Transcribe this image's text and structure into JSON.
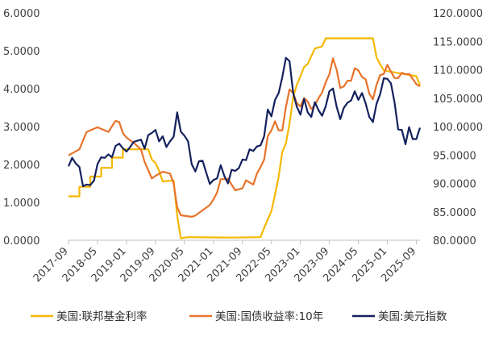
{
  "chart_data": {
    "type": "line",
    "title": "",
    "xlabel": "",
    "ylabel": "",
    "y_left": {
      "ylim": [
        0,
        6
      ],
      "ticks": [
        "0.0000",
        "1.0000",
        "2.0000",
        "3.0000",
        "4.0000",
        "5.0000",
        "6.0000"
      ]
    },
    "y_right": {
      "ylim": [
        80,
        120
      ],
      "ticks": [
        "80.0000",
        "85.0000",
        "90.0000",
        "95.0000",
        "100.0000",
        "105.0000",
        "110.0000",
        "115.0000",
        "120.0000"
      ]
    },
    "x_ticks": [
      "2017-09",
      "2018-05",
      "2019-01",
      "2019-09",
      "2020-05",
      "2021-01",
      "2021-09",
      "2022-05",
      "2023-01",
      "2023-09",
      "2024-05",
      "2025-01",
      "2025-09"
    ],
    "x_range": [
      "2017-09",
      "2025-10"
    ],
    "grid": false,
    "legend_position": "bottom",
    "series": [
      {
        "name": "美国:联邦基金利率",
        "color": "#F5B800",
        "axis": "left",
        "points": [
          [
            "2017-09",
            1.16
          ],
          [
            "2017-12",
            1.16
          ],
          [
            "2017-12",
            1.41
          ],
          [
            "2018-03",
            1.41
          ],
          [
            "2018-03",
            1.68
          ],
          [
            "2018-06",
            1.68
          ],
          [
            "2018-06",
            1.91
          ],
          [
            "2018-09",
            1.91
          ],
          [
            "2018-09",
            2.18
          ],
          [
            "2018-12",
            2.18
          ],
          [
            "2018-12",
            2.4
          ],
          [
            "2019-07",
            2.4
          ],
          [
            "2019-08",
            2.13
          ],
          [
            "2019-09",
            2.04
          ],
          [
            "2019-10",
            1.83
          ],
          [
            "2019-11",
            1.55
          ],
          [
            "2020-02",
            1.58
          ],
          [
            "2020-03",
            0.65
          ],
          [
            "2020-04",
            0.05
          ],
          [
            "2020-06",
            0.08
          ],
          [
            "2021-06",
            0.07
          ],
          [
            "2022-02",
            0.08
          ],
          [
            "2022-03",
            0.33
          ],
          [
            "2022-05",
            0.77
          ],
          [
            "2022-06",
            1.21
          ],
          [
            "2022-07",
            1.68
          ],
          [
            "2022-08",
            2.33
          ],
          [
            "2022-09",
            2.56
          ],
          [
            "2022-10",
            3.08
          ],
          [
            "2022-11",
            3.78
          ],
          [
            "2022-12",
            4.1
          ],
          [
            "2023-01",
            4.33
          ],
          [
            "2023-02",
            4.57
          ],
          [
            "2023-03",
            4.65
          ],
          [
            "2023-05",
            5.06
          ],
          [
            "2023-07",
            5.12
          ],
          [
            "2023-08",
            5.33
          ],
          [
            "2024-09",
            5.33
          ],
          [
            "2024-10",
            4.83
          ],
          [
            "2024-11",
            4.64
          ],
          [
            "2024-12",
            4.48
          ],
          [
            "2025-09",
            4.33
          ],
          [
            "2025-10",
            4.09
          ]
        ]
      },
      {
        "name": "美国:国债收益率:10年",
        "color": "#E8732B",
        "axis": "left",
        "points": [
          [
            "2017-09",
            2.24
          ],
          [
            "2017-12",
            2.4
          ],
          [
            "2018-02",
            2.86
          ],
          [
            "2018-05",
            2.98
          ],
          [
            "2018-08",
            2.86
          ],
          [
            "2018-10",
            3.15
          ],
          [
            "2018-11",
            3.12
          ],
          [
            "2018-12",
            2.83
          ],
          [
            "2019-01",
            2.71
          ],
          [
            "2019-03",
            2.57
          ],
          [
            "2019-05",
            2.4
          ],
          [
            "2019-06",
            2.07
          ],
          [
            "2019-08",
            1.63
          ],
          [
            "2019-09",
            1.7
          ],
          [
            "2019-11",
            1.81
          ],
          [
            "2020-01",
            1.76
          ],
          [
            "2020-02",
            1.5
          ],
          [
            "2020-03",
            0.87
          ],
          [
            "2020-04",
            0.66
          ],
          [
            "2020-07",
            0.62
          ],
          [
            "2020-08",
            0.65
          ],
          [
            "2020-10",
            0.79
          ],
          [
            "2020-12",
            0.93
          ],
          [
            "2021-01",
            1.08
          ],
          [
            "2021-02",
            1.26
          ],
          [
            "2021-03",
            1.61
          ],
          [
            "2021-05",
            1.62
          ],
          [
            "2021-07",
            1.32
          ],
          [
            "2021-09",
            1.37
          ],
          [
            "2021-10",
            1.58
          ],
          [
            "2021-12",
            1.47
          ],
          [
            "2022-01",
            1.76
          ],
          [
            "2022-02",
            1.93
          ],
          [
            "2022-03",
            2.13
          ],
          [
            "2022-04",
            2.75
          ],
          [
            "2022-05",
            2.9
          ],
          [
            "2022-06",
            3.14
          ],
          [
            "2022-07",
            2.9
          ],
          [
            "2022-08",
            2.9
          ],
          [
            "2022-09",
            3.52
          ],
          [
            "2022-10",
            3.98
          ],
          [
            "2022-11",
            3.89
          ],
          [
            "2022-12",
            3.62
          ],
          [
            "2023-01",
            3.53
          ],
          [
            "2023-02",
            3.75
          ],
          [
            "2023-03",
            3.66
          ],
          [
            "2023-04",
            3.46
          ],
          [
            "2023-05",
            3.57
          ],
          [
            "2023-06",
            3.75
          ],
          [
            "2023-07",
            3.9
          ],
          [
            "2023-08",
            4.17
          ],
          [
            "2023-09",
            4.38
          ],
          [
            "2023-10",
            4.8
          ],
          [
            "2023-11",
            4.5
          ],
          [
            "2023-12",
            4.02
          ],
          [
            "2024-01",
            4.06
          ],
          [
            "2024-02",
            4.21
          ],
          [
            "2024-03",
            4.21
          ],
          [
            "2024-04",
            4.54
          ],
          [
            "2024-05",
            4.48
          ],
          [
            "2024-06",
            4.31
          ],
          [
            "2024-07",
            4.25
          ],
          [
            "2024-08",
            3.87
          ],
          [
            "2024-09",
            3.72
          ],
          [
            "2024-10",
            4.1
          ],
          [
            "2024-11",
            4.36
          ],
          [
            "2024-12",
            4.39
          ],
          [
            "2025-01",
            4.63
          ],
          [
            "2025-02",
            4.45
          ],
          [
            "2025-03",
            4.28
          ],
          [
            "2025-04",
            4.28
          ],
          [
            "2025-05",
            4.42
          ],
          [
            "2025-06",
            4.38
          ],
          [
            "2025-07",
            4.39
          ],
          [
            "2025-08",
            4.26
          ],
          [
            "2025-09",
            4.12
          ],
          [
            "2025-10",
            4.06
          ]
        ]
      },
      {
        "name": "美国:美元指数",
        "color": "#14215E",
        "axis": "right",
        "points": [
          [
            "2017-09",
            93.0
          ],
          [
            "2017-10",
            94.5
          ],
          [
            "2017-11",
            93.5
          ],
          [
            "2017-12",
            92.9
          ],
          [
            "2018-01",
            89.5
          ],
          [
            "2018-02",
            89.8
          ],
          [
            "2018-03",
            89.7
          ],
          [
            "2018-04",
            90.5
          ],
          [
            "2018-05",
            93.4
          ],
          [
            "2018-06",
            94.6
          ],
          [
            "2018-07",
            94.5
          ],
          [
            "2018-08",
            95.1
          ],
          [
            "2018-09",
            94.6
          ],
          [
            "2018-10",
            96.6
          ],
          [
            "2018-11",
            97.0
          ],
          [
            "2018-12",
            96.2
          ],
          [
            "2019-01",
            95.6
          ],
          [
            "2019-02",
            96.4
          ],
          [
            "2019-03",
            97.3
          ],
          [
            "2019-04",
            97.5
          ],
          [
            "2019-05",
            97.7
          ],
          [
            "2019-06",
            96.1
          ],
          [
            "2019-07",
            98.5
          ],
          [
            "2019-08",
            98.9
          ],
          [
            "2019-09",
            99.4
          ],
          [
            "2019-10",
            97.4
          ],
          [
            "2019-11",
            98.3
          ],
          [
            "2019-12",
            96.4
          ],
          [
            "2020-01",
            97.4
          ],
          [
            "2020-02",
            98.2
          ],
          [
            "2020-03",
            102.5
          ],
          [
            "2020-04",
            99.1
          ],
          [
            "2020-05",
            98.4
          ],
          [
            "2020-06",
            97.4
          ],
          [
            "2020-07",
            93.4
          ],
          [
            "2020-08",
            92.1
          ],
          [
            "2020-09",
            93.9
          ],
          [
            "2020-10",
            94.0
          ],
          [
            "2020-11",
            91.9
          ],
          [
            "2020-12",
            89.9
          ],
          [
            "2021-01",
            90.6
          ],
          [
            "2021-02",
            90.9
          ],
          [
            "2021-03",
            93.2
          ],
          [
            "2021-04",
            91.3
          ],
          [
            "2021-05",
            90.0
          ],
          [
            "2021-06",
            92.4
          ],
          [
            "2021-07",
            92.2
          ],
          [
            "2021-08",
            92.7
          ],
          [
            "2021-09",
            94.2
          ],
          [
            "2021-10",
            94.1
          ],
          [
            "2021-11",
            96.0
          ],
          [
            "2021-12",
            95.7
          ],
          [
            "2022-01",
            96.5
          ],
          [
            "2022-02",
            96.7
          ],
          [
            "2022-03",
            98.3
          ],
          [
            "2022-04",
            103.0
          ],
          [
            "2022-05",
            101.8
          ],
          [
            "2022-06",
            104.7
          ],
          [
            "2022-07",
            105.9
          ],
          [
            "2022-08",
            108.7
          ],
          [
            "2022-09",
            112.1
          ],
          [
            "2022-10",
            111.5
          ],
          [
            "2022-11",
            105.9
          ],
          [
            "2022-12",
            103.5
          ],
          [
            "2023-01",
            102.1
          ],
          [
            "2023-02",
            104.9
          ],
          [
            "2023-03",
            102.5
          ],
          [
            "2023-04",
            101.7
          ],
          [
            "2023-05",
            104.3
          ],
          [
            "2023-06",
            102.9
          ],
          [
            "2023-07",
            101.9
          ],
          [
            "2023-08",
            103.6
          ],
          [
            "2023-09",
            106.2
          ],
          [
            "2023-10",
            106.7
          ],
          [
            "2023-11",
            103.5
          ],
          [
            "2023-12",
            101.3
          ],
          [
            "2024-01",
            103.3
          ],
          [
            "2024-02",
            104.2
          ],
          [
            "2024-03",
            104.6
          ],
          [
            "2024-04",
            106.2
          ],
          [
            "2024-05",
            104.7
          ],
          [
            "2024-06",
            105.9
          ],
          [
            "2024-07",
            104.1
          ],
          [
            "2024-08",
            101.7
          ],
          [
            "2024-09",
            100.8
          ],
          [
            "2024-10",
            104.0
          ],
          [
            "2024-11",
            105.7
          ],
          [
            "2024-12",
            108.5
          ],
          [
            "2025-01",
            108.4
          ],
          [
            "2025-02",
            107.6
          ],
          [
            "2025-03",
            104.2
          ],
          [
            "2025-04",
            99.5
          ],
          [
            "2025-05",
            99.4
          ],
          [
            "2025-06",
            96.9
          ],
          [
            "2025-07",
            99.9
          ],
          [
            "2025-08",
            97.8
          ],
          [
            "2025-09",
            97.8
          ],
          [
            "2025-10",
            99.8
          ]
        ]
      }
    ]
  }
}
